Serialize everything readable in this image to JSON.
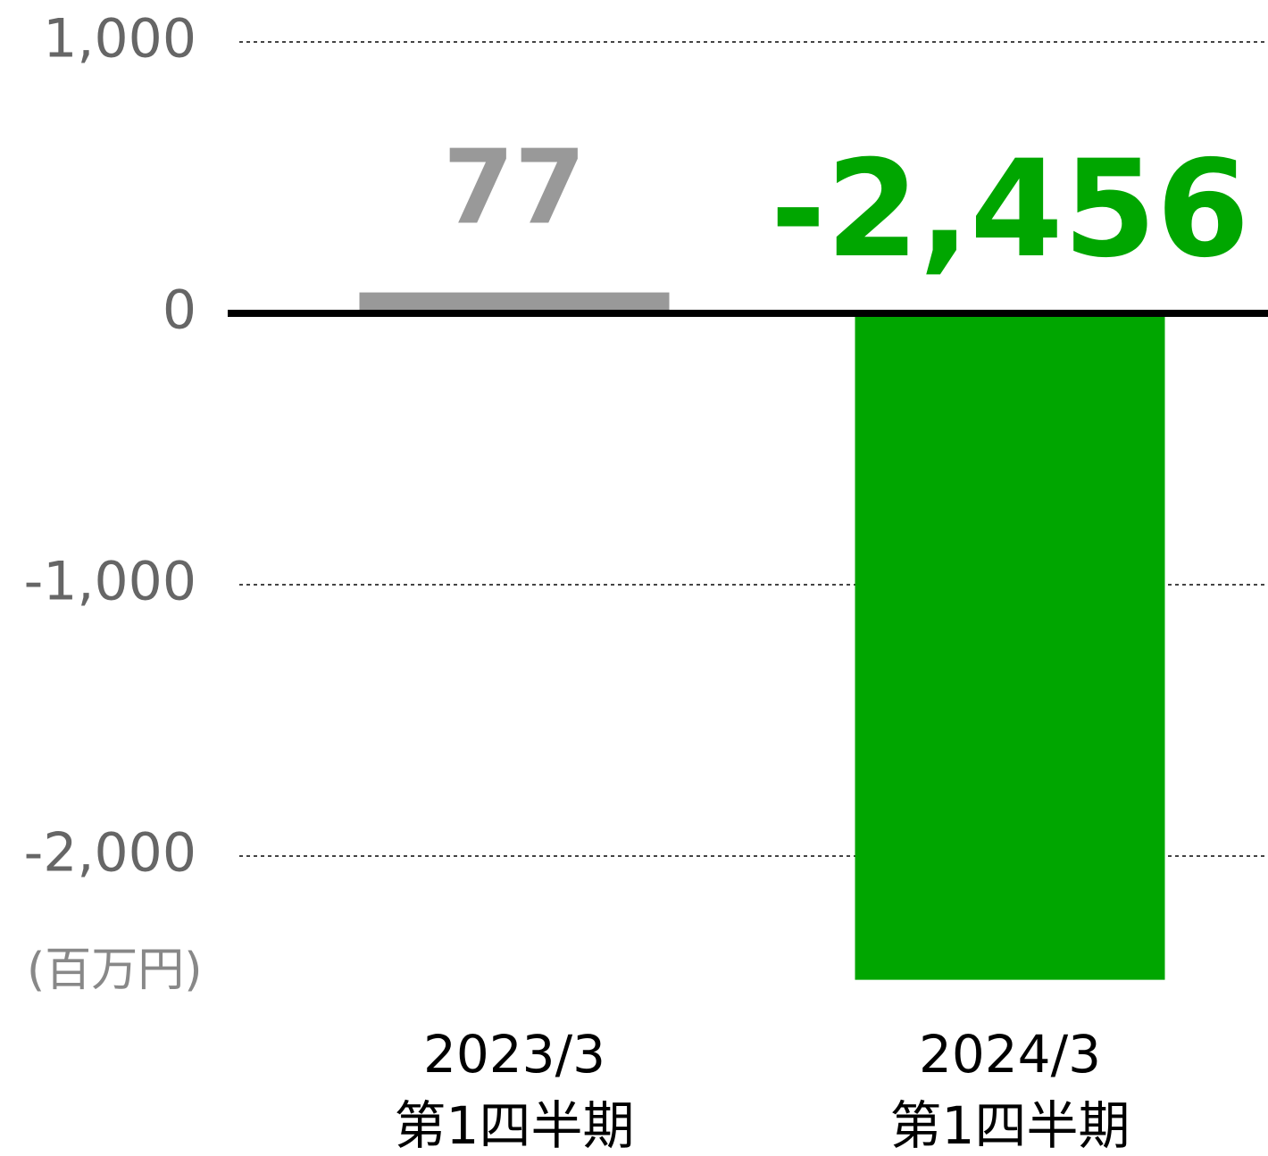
{
  "chart_data": {
    "type": "bar",
    "categories": [
      [
        "2023/3",
        "第1四半期"
      ],
      [
        "2024/3",
        "第1四半期"
      ]
    ],
    "values": [
      77,
      -2456
    ],
    "value_labels": [
      "77",
      "-2,456"
    ],
    "colors": [
      "#999999",
      "#00a600"
    ],
    "ylim": [
      -2500,
      1000
    ],
    "yticks": [
      {
        "value": 1000,
        "label": "1,000"
      },
      0,
      {
        "value": -1000,
        "label": "-1,000"
      },
      {
        "value": -2000,
        "label": "-2,000"
      }
    ],
    "y_unit": "(百万円)",
    "grid": true
  }
}
